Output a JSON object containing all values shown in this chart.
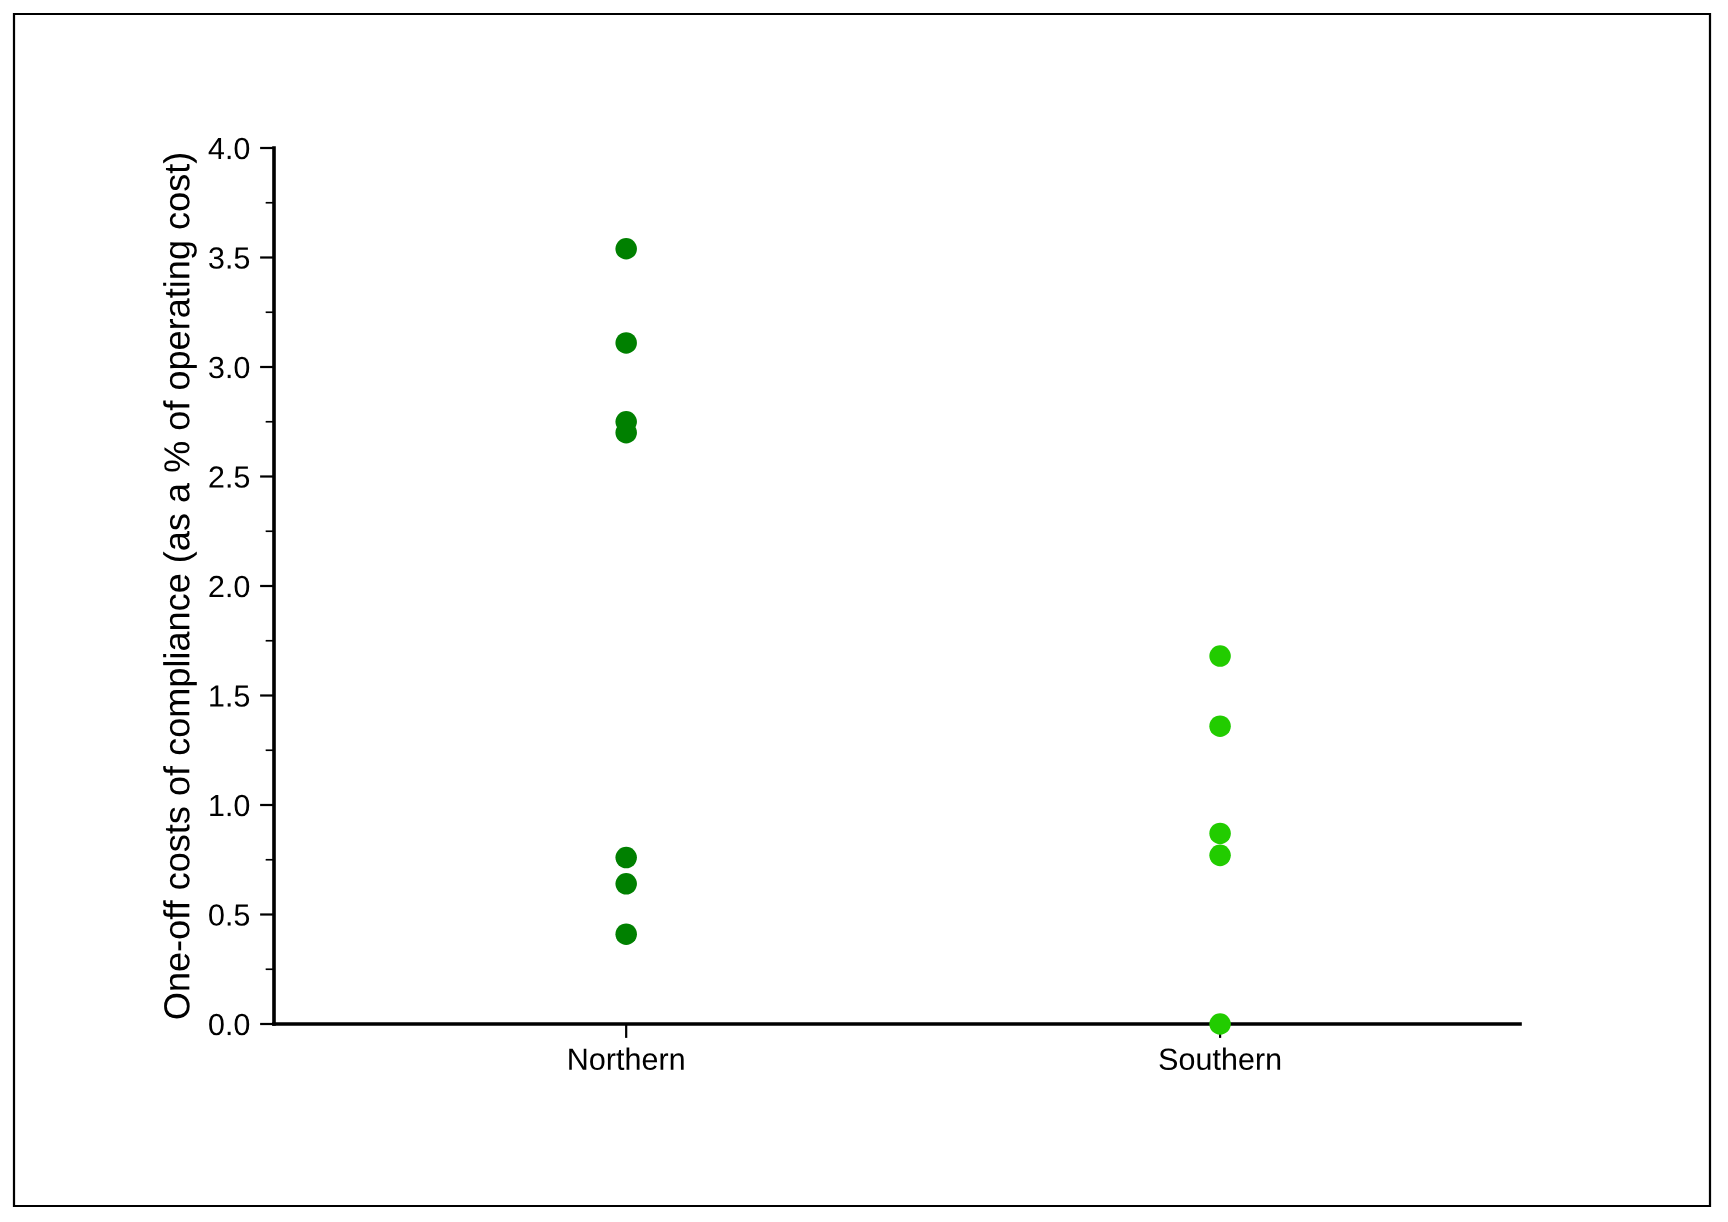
{
  "chart_data": {
    "type": "scatter",
    "ylabel": "One-off costs of compliance (as a % of operating cost)",
    "categories": [
      "Northern",
      "Southern"
    ],
    "series": [
      {
        "color": "#008000",
        "x": [
          "Northern",
          "Northern",
          "Northern",
          "Northern",
          "Northern",
          "Northern",
          "Northern"
        ],
        "values": [
          3.54,
          3.11,
          2.75,
          2.7,
          0.76,
          0.64,
          0.41
        ]
      },
      {
        "color": "#22cc00",
        "x": [
          "Southern",
          "Southern",
          "Southern",
          "Southern",
          "Southern"
        ],
        "values": [
          1.68,
          1.36,
          0.87,
          0.77,
          0.0
        ]
      }
    ],
    "ylim": [
      0,
      4
    ],
    "yticks": [
      {
        "value": 0,
        "label": "0.0"
      },
      0.5,
      {
        "value": 1,
        "label": "1.0"
      },
      1.5,
      {
        "value": 2,
        "label": "2.0"
      },
      2.5,
      {
        "value": 3,
        "label": "3.0"
      },
      3.5,
      {
        "value": 4,
        "label": "4.0"
      }
    ],
    "grid": false,
    "legend": false,
    "marker": "circle"
  }
}
